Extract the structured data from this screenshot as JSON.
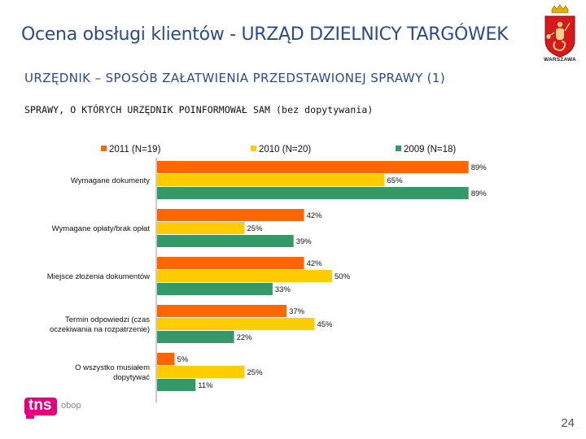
{
  "header": {
    "title": "Ocena obsługi klientów - URZĄD DZIELNICY TARGÓWEK",
    "subtitle": "URZĘDNIK – SPOSÓB ZAŁATWIENIA PRZEDSTAWIONEJ SPRAWY (1)",
    "section": "SPRAWY, O KTÓRYCH URZĘDNIK POINFORMOWAŁ SAM (bez dopytywania)"
  },
  "logo": {
    "crest_label": "WARSZAWA",
    "brand": "tns",
    "brand_sub": "obop"
  },
  "page_number": "24",
  "colors": {
    "title": "#2b4a8f",
    "s2011": "#ff6600",
    "s2010": "#ffcc00",
    "s2009": "#339966"
  },
  "chart_data": {
    "type": "bar",
    "orientation": "horizontal",
    "title": "",
    "xlabel": "",
    "ylabel": "",
    "xlim": [
      0,
      100
    ],
    "categories": [
      [
        "Wymagane dokumenty"
      ],
      [
        "Wymagane opłaty/brak opłat"
      ],
      [
        "Miejsce złożenia dokumentów"
      ],
      [
        "Termin odpowiedzi (czas",
        "oczekiwania na rozpatrzenie)"
      ],
      [
        "O wszystko musiałem",
        "dopytywać"
      ]
    ],
    "series": [
      {
        "name": "2011 (N=19)",
        "color": "#ff6600",
        "values": [
          89,
          42,
          42,
          37,
          5
        ]
      },
      {
        "name": "2010 (N=20)",
        "color": "#ffcc00",
        "values": [
          65,
          25,
          50,
          45,
          25
        ]
      },
      {
        "name": "2009 (N=18)",
        "color": "#339966",
        "values": [
          89,
          39,
          33,
          22,
          11
        ]
      }
    ],
    "value_suffix": "%",
    "legend": "top"
  }
}
